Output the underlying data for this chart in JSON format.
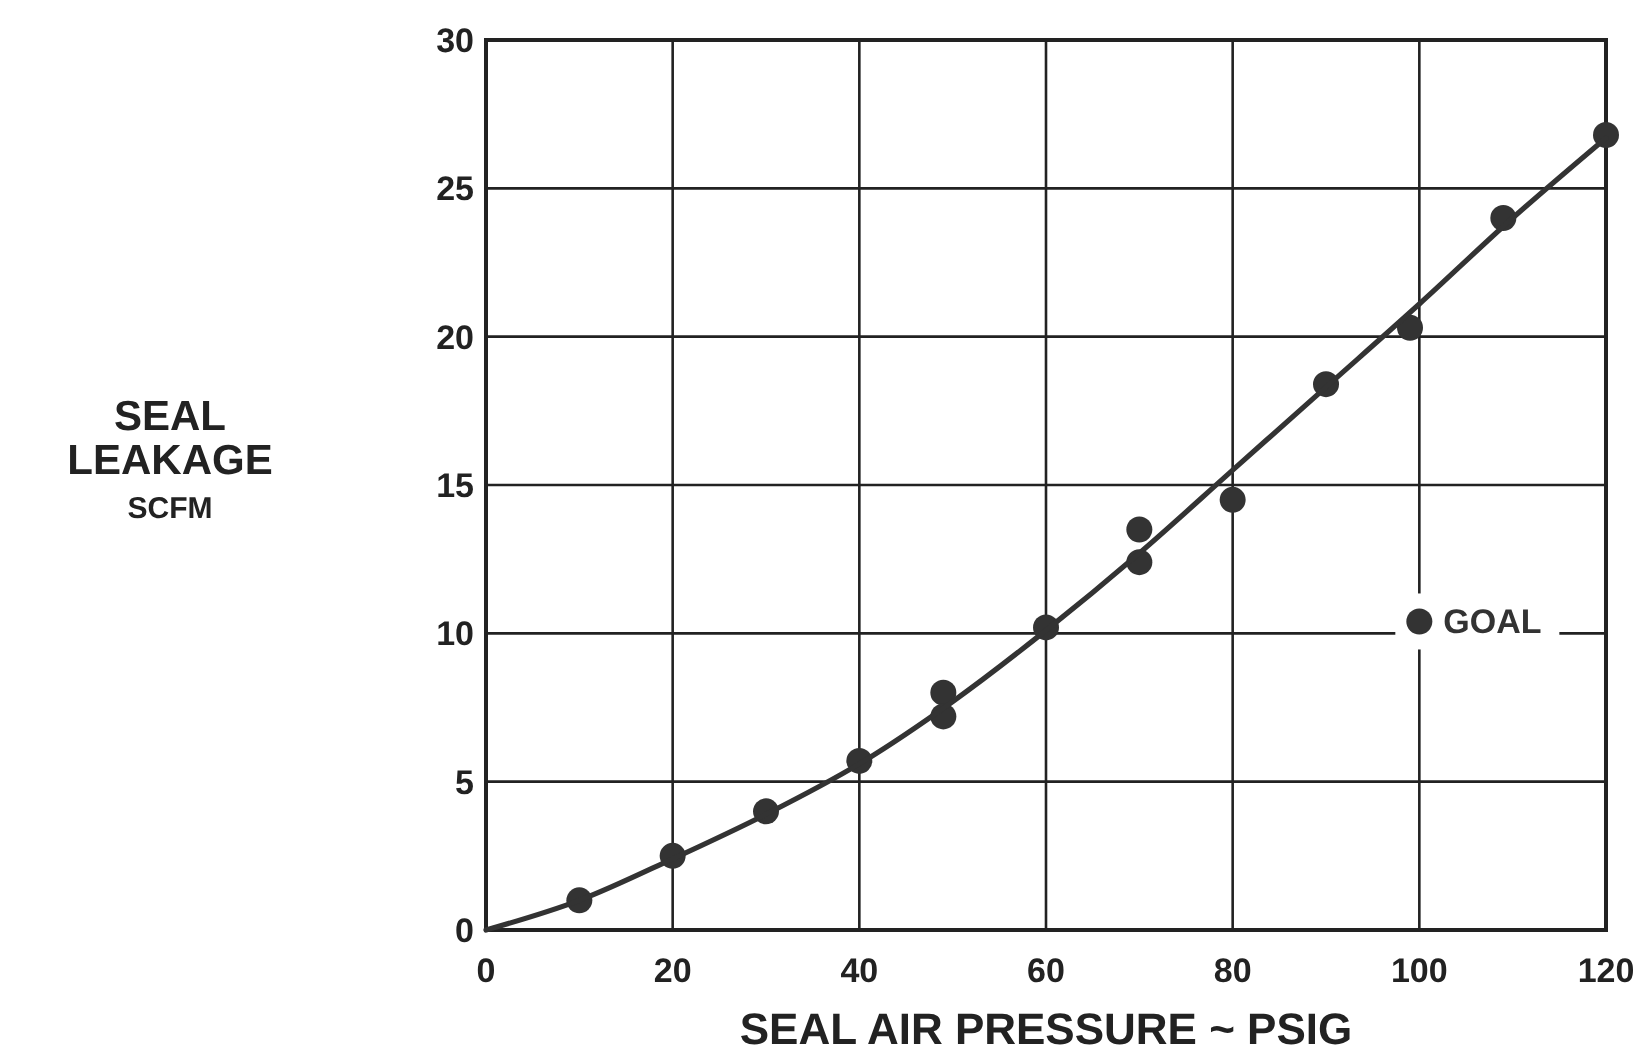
{
  "chart_data": {
    "type": "scatter",
    "xlabel": "SEAL AIR PRESSURE ~ PSIG",
    "ylabel": "SEAL LEAKAGE SCFM",
    "xlim": [
      0,
      120
    ],
    "ylim": [
      0,
      30
    ],
    "xticks": [
      0,
      20,
      40,
      60,
      80,
      100,
      120
    ],
    "yticks": [
      0,
      5,
      10,
      15,
      20,
      25,
      30
    ],
    "grid": true,
    "marker": "circle",
    "series": [
      {
        "color": "#333333",
        "x": [
          10,
          20,
          30,
          40,
          49,
          49,
          60,
          70,
          70,
          80,
          90,
          99,
          109,
          120
        ],
        "values": [
          1.0,
          2.5,
          4.0,
          5.7,
          8.0,
          7.2,
          10.2,
          13.5,
          12.4,
          14.5,
          18.4,
          20.3,
          24.0,
          26.8
        ]
      },
      {
        "type": "line",
        "color": "#333333",
        "marker": "none",
        "x": [
          0,
          10,
          20,
          30,
          40,
          50,
          60,
          70,
          80,
          90,
          100,
          110,
          120
        ],
        "values": [
          0,
          1.0,
          2.4,
          3.9,
          5.6,
          7.7,
          10.1,
          12.7,
          15.5,
          18.3,
          21.1,
          24.0,
          26.7
        ]
      },
      {
        "name": "GOAL",
        "color": "#333333",
        "x": [
          100
        ],
        "values": [
          10.4
        ]
      }
    ]
  }
}
